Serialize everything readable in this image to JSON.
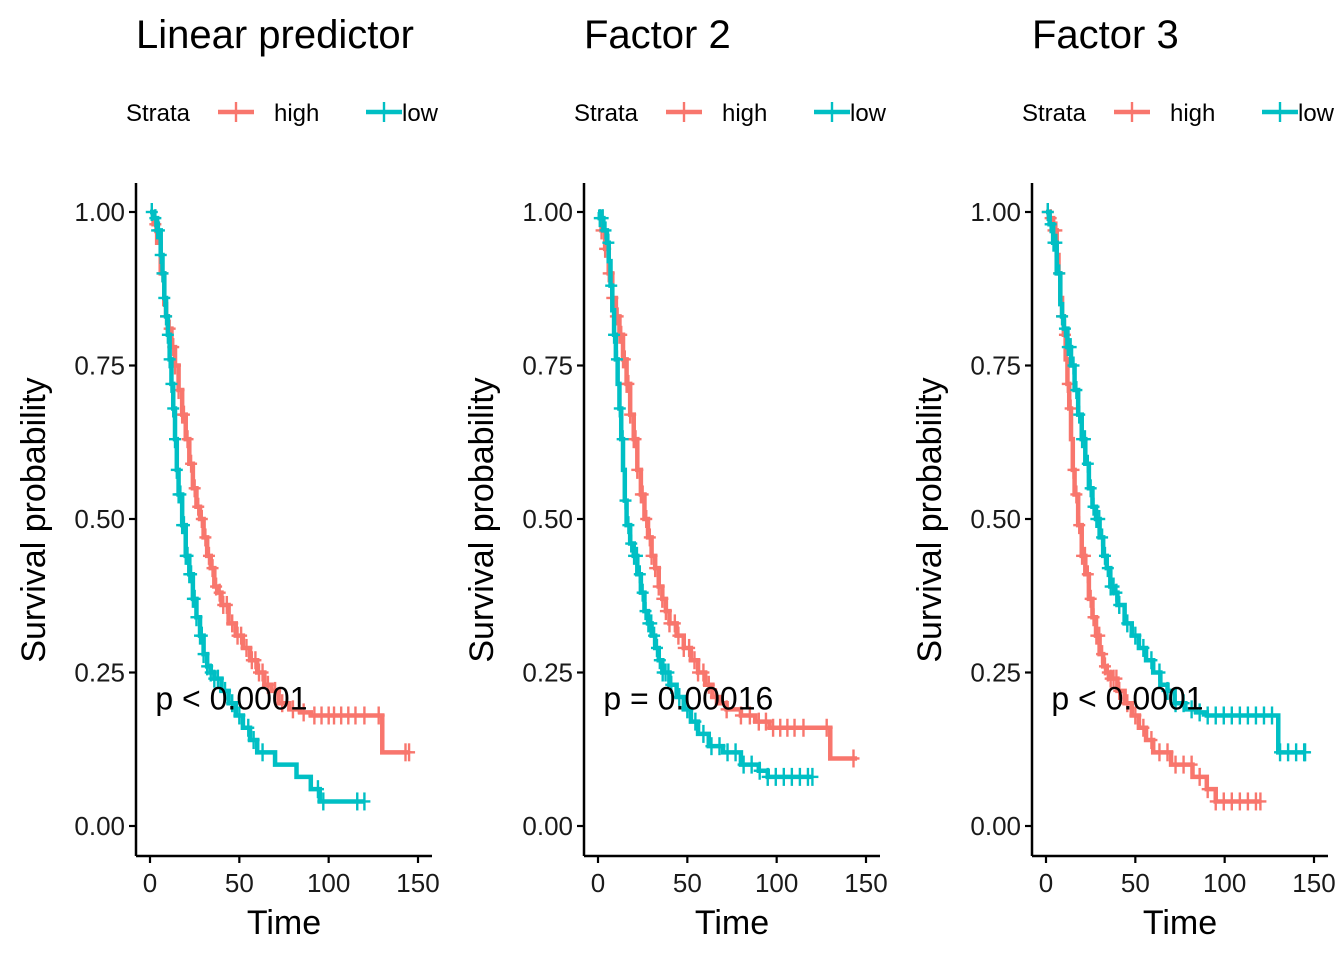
{
  "colors": {
    "high": "#F8766D",
    "low": "#00BFC4"
  },
  "chart_data": [
    {
      "type": "line",
      "title": "Linear predictor",
      "xlabel": "Time",
      "ylabel": "Survival probability",
      "xlim": [
        0,
        150
      ],
      "ylim": [
        0,
        1
      ],
      "x_ticks": [
        0,
        50,
        100,
        150
      ],
      "y_ticks": [
        0.0,
        0.25,
        0.5,
        0.75,
        1.0
      ],
      "x_tick_labels": [
        "0",
        "50",
        "100",
        "150"
      ],
      "y_tick_labels": [
        "0.00",
        "0.25",
        "0.50",
        "0.75",
        "1.00"
      ],
      "legend": {
        "title": "Strata",
        "position": "top",
        "entries": [
          "high",
          "low"
        ]
      },
      "annotation": "p < 0.0001",
      "annotation_at": [
        3,
        0.19
      ],
      "series": [
        {
          "name": "high",
          "x": [
            0,
            2,
            4,
            6,
            8,
            9,
            10,
            12,
            14,
            16,
            18,
            20,
            22,
            24,
            26,
            28,
            30,
            32,
            34,
            36,
            38,
            40,
            44,
            48,
            52,
            56,
            60,
            64,
            68,
            72,
            78,
            84,
            90,
            95,
            100,
            130,
            145
          ],
          "y": [
            1.0,
            0.98,
            0.95,
            0.9,
            0.85,
            0.83,
            0.81,
            0.78,
            0.75,
            0.71,
            0.67,
            0.63,
            0.59,
            0.55,
            0.52,
            0.5,
            0.47,
            0.44,
            0.42,
            0.39,
            0.38,
            0.36,
            0.33,
            0.31,
            0.29,
            0.27,
            0.25,
            0.23,
            0.22,
            0.2,
            0.19,
            0.185,
            0.18,
            0.18,
            0.18,
            0.12,
            0.12
          ],
          "censor_x": [
            3,
            7,
            9,
            11,
            13,
            14,
            16,
            18,
            19,
            21,
            23,
            25,
            27,
            29,
            31,
            33,
            35,
            37,
            39,
            41,
            43,
            46,
            49,
            51,
            54,
            57,
            59,
            61,
            63,
            66,
            70,
            74,
            80,
            86,
            92,
            96,
            100,
            103,
            107,
            111,
            115,
            120,
            128,
            143,
            145
          ]
        },
        {
          "name": "low",
          "x": [
            0,
            2,
            4,
            6,
            7,
            8,
            9,
            10,
            11,
            12,
            13,
            14,
            15,
            16,
            18,
            20,
            22,
            24,
            26,
            28,
            30,
            32,
            34,
            36,
            40,
            44,
            48,
            52,
            56,
            60,
            70,
            82,
            90,
            95,
            120
          ],
          "y": [
            1.0,
            0.99,
            0.97,
            0.93,
            0.9,
            0.86,
            0.83,
            0.8,
            0.76,
            0.72,
            0.68,
            0.63,
            0.58,
            0.54,
            0.49,
            0.44,
            0.41,
            0.37,
            0.34,
            0.31,
            0.28,
            0.26,
            0.25,
            0.24,
            0.22,
            0.2,
            0.18,
            0.16,
            0.14,
            0.12,
            0.1,
            0.08,
            0.06,
            0.04,
            0.04
          ],
          "censor_x": [
            1,
            3,
            4,
            5,
            6,
            7,
            8,
            9,
            10,
            11,
            12,
            13,
            14,
            15,
            16,
            17,
            18,
            19,
            20,
            21,
            22,
            23,
            24,
            25,
            26,
            28,
            29,
            30,
            32,
            34,
            36,
            38,
            42,
            46,
            50,
            55,
            58,
            63,
            94,
            97,
            116,
            120
          ]
        }
      ]
    },
    {
      "type": "line",
      "title": "Factor 2",
      "xlabel": "Time",
      "ylabel": "Survival probability",
      "xlim": [
        0,
        150
      ],
      "ylim": [
        0,
        1
      ],
      "x_ticks": [
        0,
        50,
        100,
        150
      ],
      "y_ticks": [
        0.0,
        0.25,
        0.5,
        0.75,
        1.0
      ],
      "x_tick_labels": [
        "0",
        "50",
        "100",
        "150"
      ],
      "y_tick_labels": [
        "0.00",
        "0.25",
        "0.50",
        "0.75",
        "1.00"
      ],
      "legend": {
        "title": "Strata",
        "position": "top",
        "entries": [
          "high",
          "low"
        ]
      },
      "annotation": "p = 0.00016",
      "annotation_at": [
        3,
        0.19
      ],
      "series": [
        {
          "name": "high",
          "x": [
            0,
            2,
            4,
            6,
            8,
            10,
            12,
            14,
            16,
            18,
            20,
            22,
            24,
            26,
            28,
            30,
            32,
            34,
            36,
            38,
            40,
            44,
            48,
            52,
            56,
            60,
            64,
            68,
            72,
            80,
            88,
            96,
            100,
            110,
            130,
            145
          ],
          "y": [
            1.0,
            0.97,
            0.94,
            0.9,
            0.86,
            0.83,
            0.8,
            0.76,
            0.72,
            0.67,
            0.63,
            0.58,
            0.54,
            0.5,
            0.47,
            0.44,
            0.42,
            0.39,
            0.37,
            0.35,
            0.33,
            0.31,
            0.29,
            0.27,
            0.25,
            0.23,
            0.21,
            0.2,
            0.19,
            0.18,
            0.17,
            0.16,
            0.16,
            0.16,
            0.11,
            0.11
          ],
          "censor_x": [
            2,
            4,
            6,
            8,
            10,
            11,
            12,
            13,
            14,
            15,
            16,
            17,
            18,
            20,
            21,
            22,
            24,
            25,
            27,
            29,
            30,
            32,
            34,
            36,
            38,
            40,
            43,
            45,
            48,
            51,
            54,
            56,
            59,
            62,
            66,
            72,
            80,
            85,
            90,
            94,
            98,
            102,
            106,
            110,
            115,
            128,
            143
          ]
        },
        {
          "name": "low",
          "x": [
            0,
            1,
            3,
            5,
            6,
            7,
            8,
            9,
            10,
            11,
            12,
            13,
            14,
            15,
            16,
            18,
            20,
            22,
            24,
            26,
            28,
            30,
            32,
            34,
            36,
            40,
            44,
            48,
            52,
            56,
            62,
            70,
            80,
            90,
            95,
            120
          ],
          "y": [
            1.0,
            0.99,
            0.97,
            0.95,
            0.92,
            0.88,
            0.84,
            0.8,
            0.76,
            0.72,
            0.68,
            0.63,
            0.58,
            0.53,
            0.49,
            0.46,
            0.44,
            0.41,
            0.38,
            0.35,
            0.33,
            0.31,
            0.29,
            0.27,
            0.25,
            0.23,
            0.21,
            0.19,
            0.17,
            0.15,
            0.13,
            0.12,
            0.1,
            0.09,
            0.08,
            0.08
          ]
        }
      ]
    },
    {
      "type": "line",
      "title": "Factor 3",
      "xlabel": "Time",
      "ylabel": "Survival probability",
      "xlim": [
        0,
        150
      ],
      "ylim": [
        0,
        1
      ],
      "x_ticks": [
        0,
        50,
        100,
        150
      ],
      "y_ticks": [
        0.0,
        0.25,
        0.5,
        0.75,
        1.0
      ],
      "x_tick_labels": [
        "0",
        "50",
        "100",
        "150"
      ],
      "y_tick_labels": [
        "0.00",
        "0.25",
        "0.50",
        "0.75",
        "1.00"
      ],
      "legend": {
        "title": "Strata",
        "position": "top",
        "entries": [
          "high",
          "low"
        ]
      },
      "annotation": "p < 0.0001",
      "annotation_at": [
        3,
        0.19
      ],
      "series": [
        {
          "name": "high",
          "x": [
            0,
            2,
            4,
            6,
            7,
            8,
            9,
            10,
            11,
            12,
            13,
            14,
            15,
            16,
            18,
            20,
            22,
            24,
            26,
            28,
            30,
            32,
            34,
            36,
            40,
            44,
            48,
            52,
            56,
            60,
            70,
            82,
            90,
            95,
            120
          ],
          "y": [
            1.0,
            0.99,
            0.97,
            0.93,
            0.9,
            0.86,
            0.83,
            0.8,
            0.76,
            0.72,
            0.68,
            0.63,
            0.58,
            0.54,
            0.49,
            0.44,
            0.41,
            0.37,
            0.34,
            0.31,
            0.28,
            0.26,
            0.25,
            0.24,
            0.22,
            0.2,
            0.18,
            0.16,
            0.14,
            0.12,
            0.1,
            0.08,
            0.06,
            0.04,
            0.04
          ]
        },
        {
          "name": "low",
          "x": [
            0,
            2,
            4,
            6,
            8,
            9,
            10,
            12,
            14,
            16,
            18,
            20,
            22,
            24,
            26,
            28,
            30,
            32,
            34,
            36,
            38,
            40,
            44,
            48,
            52,
            56,
            60,
            64,
            68,
            72,
            78,
            84,
            90,
            95,
            100,
            130,
            145
          ],
          "y": [
            1.0,
            0.98,
            0.95,
            0.9,
            0.85,
            0.83,
            0.81,
            0.78,
            0.75,
            0.71,
            0.67,
            0.63,
            0.59,
            0.55,
            0.52,
            0.5,
            0.47,
            0.44,
            0.42,
            0.39,
            0.38,
            0.36,
            0.33,
            0.31,
            0.29,
            0.27,
            0.25,
            0.23,
            0.22,
            0.2,
            0.19,
            0.185,
            0.18,
            0.18,
            0.18,
            0.12,
            0.12
          ]
        }
      ]
    }
  ]
}
